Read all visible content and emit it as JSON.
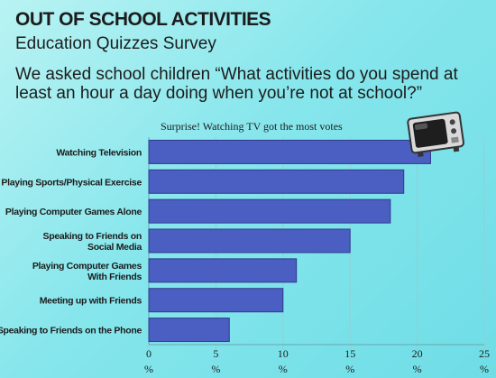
{
  "header": {
    "title": "OUT OF SCHOOL ACTIVITIES",
    "subtitle": "Education Quizzes Survey",
    "question": "We asked school children “What activities do you spend at least an hour a day doing when you’re not at school?”"
  },
  "chart_data": {
    "type": "bar",
    "orientation": "horizontal",
    "annotation": "Surprise! Watching TV got the most votes",
    "categories": [
      "Watching Television",
      "Playing Sports/Physical Exercise",
      "Playing Computer Games Alone",
      "Speaking to Friends on Social Media",
      "Playing Computer Games With Friends",
      "Meeting up with Friends",
      "Speaking to Friends on the Phone"
    ],
    "category_lines": [
      [
        "Watching Television"
      ],
      [
        "Playing Sports/Physical Exercise"
      ],
      [
        "Playing Computer Games Alone"
      ],
      [
        "Speaking to Friends on",
        "Social Media"
      ],
      [
        "Playing Computer Games",
        "With Friends"
      ],
      [
        "Meeting up with Friends"
      ],
      [
        "Speaking to Friends on the Phone"
      ]
    ],
    "values": [
      21,
      19,
      18,
      15,
      11,
      10,
      6
    ],
    "xlim": [
      0,
      25
    ],
    "xticks": [
      0,
      5,
      10,
      15,
      20,
      25
    ],
    "tick_unit": "%",
    "grid": true,
    "bar_color": "#4a5fc1",
    "bar_edge_color": "#2e3c8a",
    "grid_color": "#8fd0d6"
  },
  "icons": {
    "tv": "television-icon"
  }
}
